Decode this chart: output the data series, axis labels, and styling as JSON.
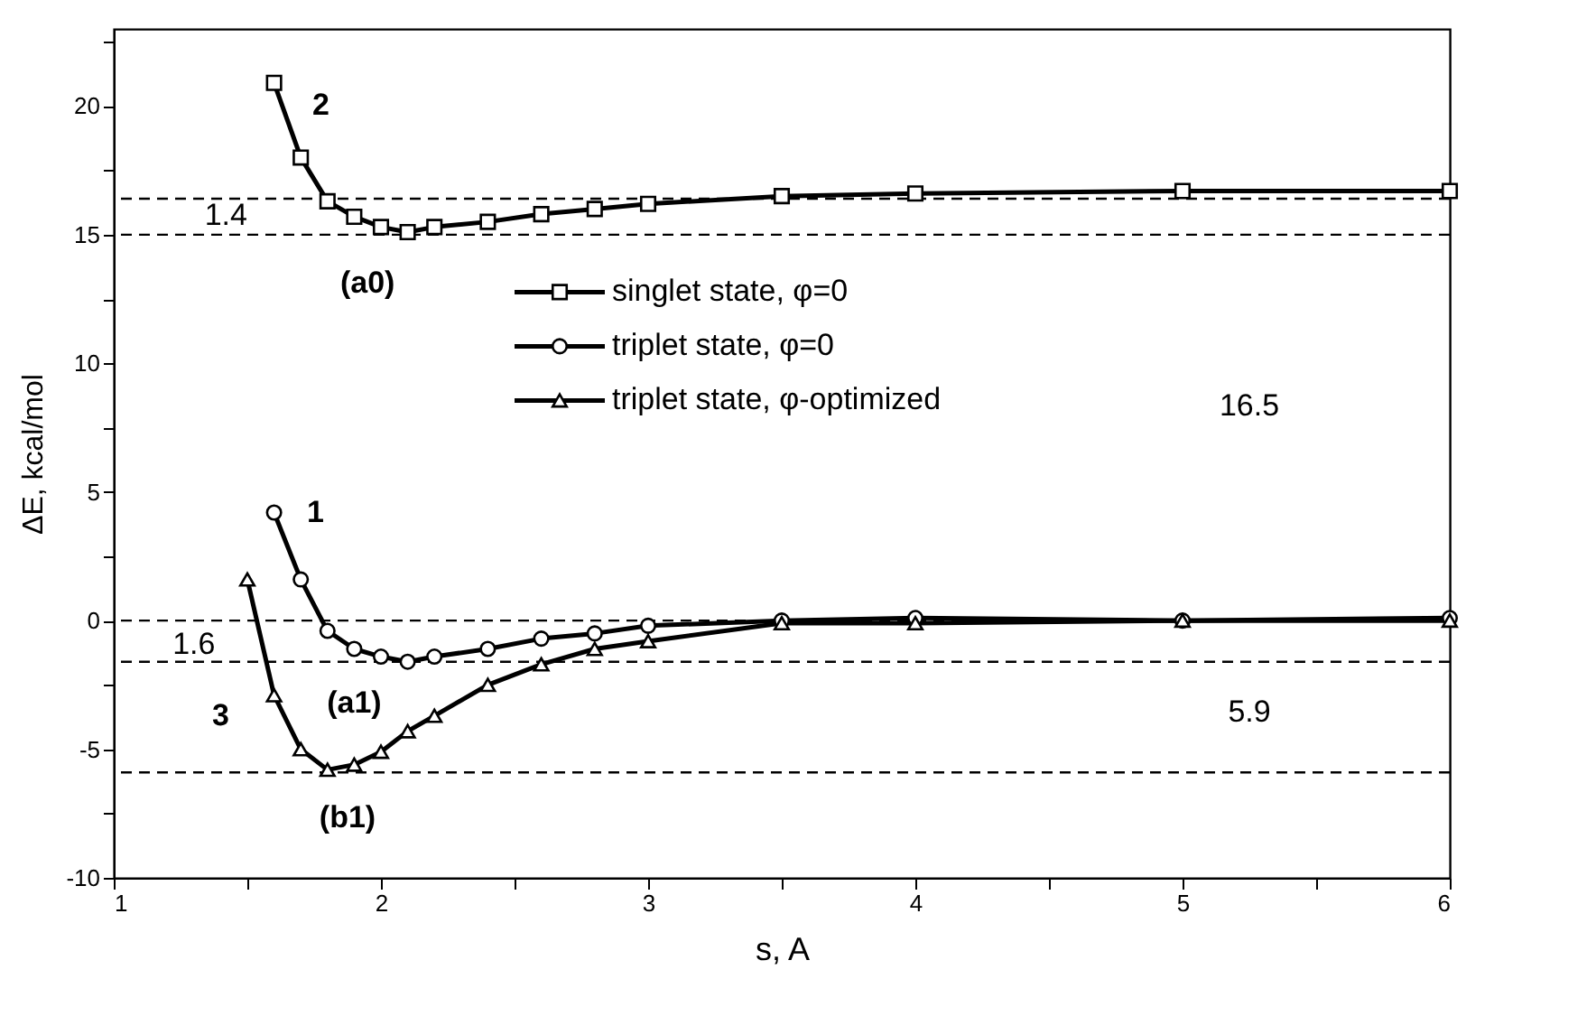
{
  "chart_data": {
    "type": "line",
    "xlabel": "s, A",
    "ylabel": "ΔE, kcal/mol",
    "xlim": [
      1,
      6
    ],
    "ylim": [
      -10,
      23
    ],
    "xticks": [
      1,
      {
        "value": 1.5,
        "label": null
      },
      2,
      {
        "value": 2.5,
        "label": null
      },
      3,
      {
        "value": 3.5,
        "label": null
      },
      4,
      {
        "value": 4.5,
        "label": null
      },
      5,
      {
        "value": 5.5,
        "label": null
      },
      6
    ],
    "yticks": [
      -10,
      {
        "value": -7.5,
        "label": null
      },
      -5,
      {
        "value": -2.5,
        "label": null
      },
      0,
      {
        "value": 2.5,
        "label": null
      },
      5,
      {
        "value": 7.5,
        "label": null
      },
      10,
      {
        "value": 12.5,
        "label": null
      },
      15,
      {
        "value": 17.5,
        "label": null
      },
      20,
      {
        "value": 22.5,
        "label": null
      }
    ],
    "grid": false,
    "legend": "center",
    "line_style": "solid",
    "series": [
      {
        "name": "singlet state, φ=0",
        "color": "#000000",
        "marker": "square",
        "x": [
          1.6,
          1.7,
          1.8,
          1.9,
          2.0,
          2.1,
          2.2,
          2.4,
          2.6,
          2.8,
          3.0,
          3.5,
          4,
          5,
          6
        ],
        "values": [
          20.9,
          18.0,
          16.3,
          15.7,
          15.3,
          15.1,
          15.3,
          15.5,
          15.8,
          16.0,
          16.2,
          16.5,
          16.6,
          16.7,
          16.7
        ]
      },
      {
        "name": "triplet state, φ=0",
        "color": "#000000",
        "marker": "circle",
        "x": [
          1.6,
          1.7,
          1.8,
          1.9,
          2.0,
          2.1,
          2.2,
          2.4,
          2.6,
          2.8,
          3.0,
          3.5,
          4,
          5,
          6
        ],
        "values": [
          4.2,
          1.6,
          -0.4,
          -1.1,
          -1.4,
          -1.6,
          -1.4,
          -1.1,
          -0.7,
          -0.5,
          -0.2,
          0,
          0.1,
          0,
          0.1
        ]
      },
      {
        "name": "triplet state, φ-optimized",
        "color": "#000000",
        "marker": "triangle",
        "x": [
          1.5,
          1.6,
          1.7,
          1.8,
          1.9,
          2.0,
          2.1,
          2.2,
          2.4,
          2.6,
          2.8,
          3.0,
          3.5,
          4,
          5,
          6
        ],
        "values": [
          1.6,
          -2.9,
          -5.0,
          -5.8,
          -5.6,
          -5.1,
          -4.3,
          -3.7,
          -2.5,
          -1.7,
          -1.1,
          -0.8,
          -0.1,
          -0.1,
          0,
          0
        ]
      }
    ],
    "ref_lines": [
      {
        "axis": "y",
        "value": 16.4,
        "color": "#000000",
        "line_style": "dashed"
      },
      {
        "axis": "y",
        "value": 15.0,
        "color": "#000000",
        "line_style": "dashed"
      },
      {
        "axis": "y",
        "value": 0,
        "color": "#000000",
        "line_style": "dashed"
      },
      {
        "axis": "y",
        "value": -1.6,
        "color": "#000000",
        "line_style": "dashed"
      },
      {
        "axis": "y",
        "value": -5.9,
        "color": "#000000",
        "line_style": "dashed"
      }
    ],
    "annotations": [
      "2",
      "1",
      "3",
      "(a0)",
      "(a1)",
      "(b1)",
      "1.4",
      "1.6",
      "16.5",
      "5.9"
    ]
  }
}
